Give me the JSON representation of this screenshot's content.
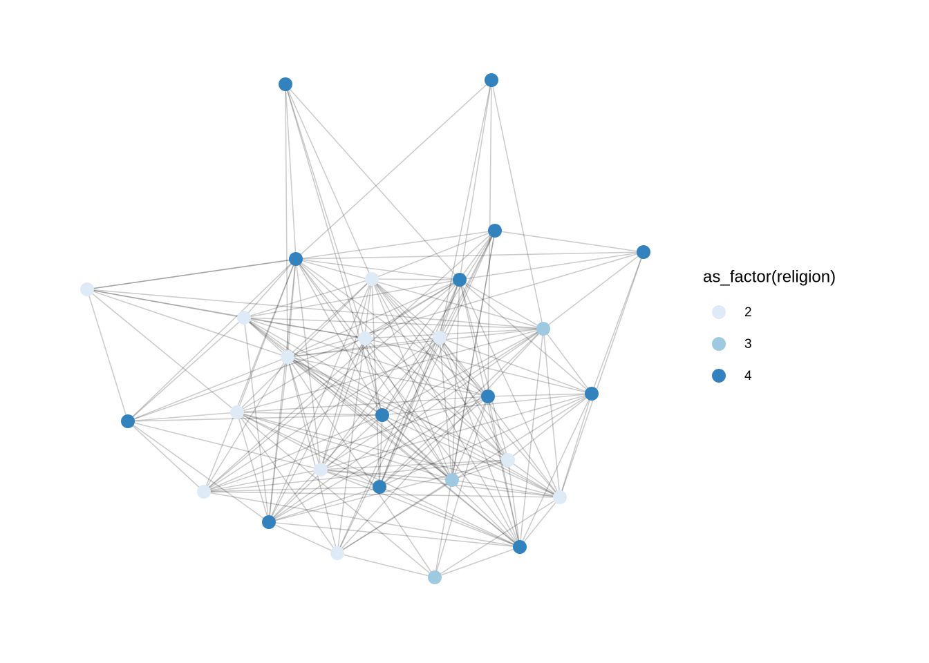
{
  "legend": {
    "title": "as_factor(religion)",
    "levels": [
      2,
      3,
      4
    ],
    "colors": [
      "#deebf7",
      "#9ecae1",
      "#3182bd"
    ]
  },
  "religion": [
    4,
    4,
    4,
    4,
    4,
    2,
    2,
    4,
    2,
    3,
    2,
    2,
    2,
    4,
    4,
    4,
    2,
    4,
    2,
    2,
    3,
    4,
    2,
    2,
    4,
    4,
    2,
    3
  ]
}
